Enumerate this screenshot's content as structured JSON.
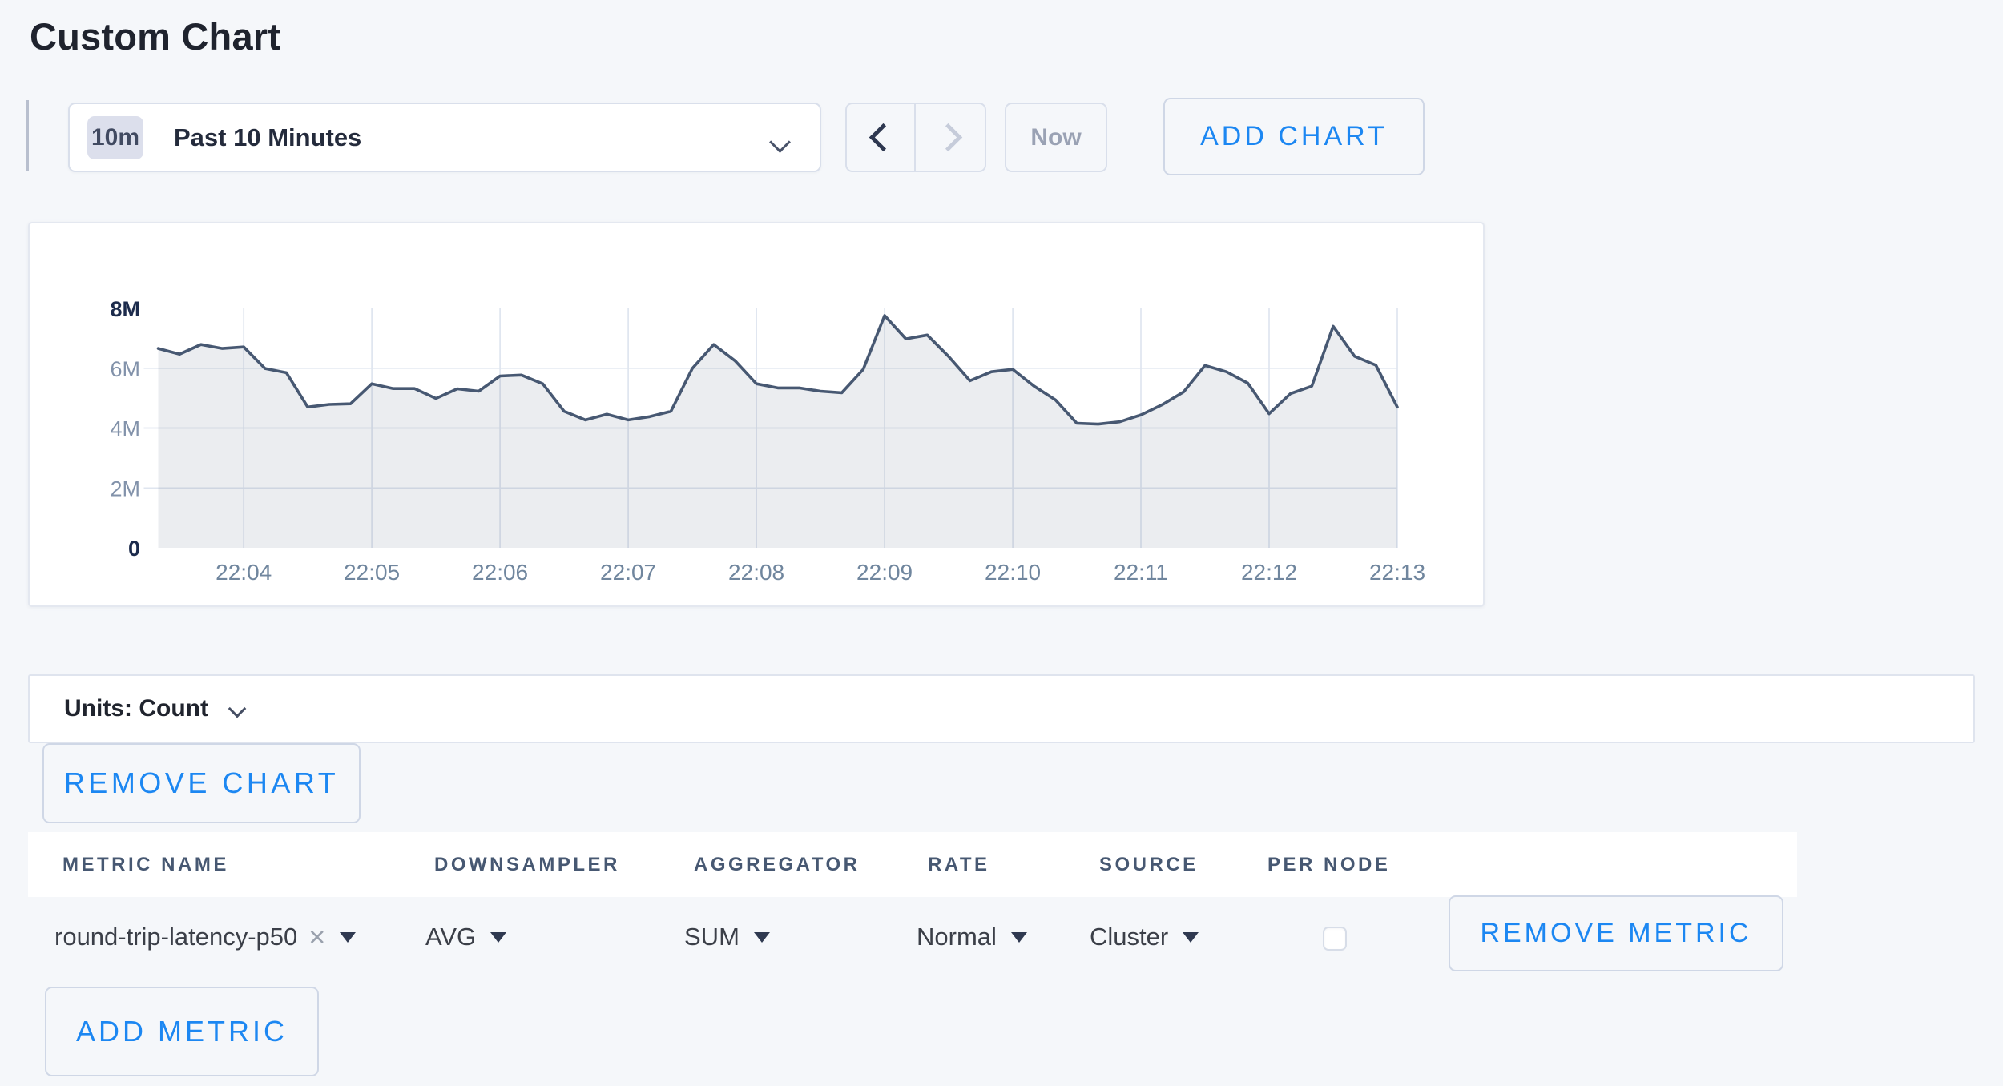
{
  "page": {
    "title": "Custom Chart",
    "background_color": "#f5f7fa",
    "accent_blue": "#1c87f2"
  },
  "toolbar": {
    "time_badge": "10m",
    "time_range_label": "Past 10 Minutes",
    "prev_icon": "chevron-left",
    "next_icon": "chevron-right",
    "now_label": "Now",
    "add_chart_label": "ADD CHART"
  },
  "units_bar": {
    "label": "Units: Count",
    "chevron_icon": "chevron-down"
  },
  "remove_chart_label": "REMOVE CHART",
  "add_metric_label": "ADD METRIC",
  "metrics_table": {
    "headers": [
      "METRIC NAME",
      "DOWNSAMPLER",
      "AGGREGATOR",
      "RATE",
      "SOURCE",
      "PER NODE"
    ],
    "rows": [
      {
        "metric_name": "round-trip-latency-p50",
        "downsampler": "AVG",
        "aggregator": "SUM",
        "rate": "Normal",
        "source": "Cluster",
        "per_node_checked": false,
        "remove_label": "REMOVE METRIC"
      }
    ]
  },
  "chart_data": {
    "type": "area",
    "title": "",
    "legend": false,
    "grid": true,
    "x_tick_labels": [
      "22:04",
      "22:05",
      "22:06",
      "22:07",
      "22:08",
      "22:09",
      "22:10",
      "22:11",
      "22:12",
      "22:13"
    ],
    "x_tick_first_index": 4,
    "x_tick_index_step": 6,
    "y_tick_labels": [
      "0",
      "2M",
      "4M",
      "6M",
      "8M"
    ],
    "y_max_millions": 8,
    "line_color": "#475872",
    "fill_color": "rgba(71,88,114,0.11)",
    "grid_color": "#dfe5ef",
    "axis_label_color_muted": "#8292aa",
    "axis_label_color_strong": "#1c2b4c",
    "x_label_color": "#70869e",
    "series": [
      {
        "name": "round-trip-latency-p50",
        "start_time": "22:03:20",
        "end_time": "22:13:00",
        "interval_seconds": 10,
        "values_millions": [
          6.66,
          6.47,
          6.79,
          6.66,
          6.71,
          5.99,
          5.85,
          4.7,
          4.79,
          4.81,
          5.48,
          5.32,
          5.32,
          4.99,
          5.31,
          5.23,
          5.74,
          5.77,
          5.48,
          4.56,
          4.27,
          4.46,
          4.27,
          4.38,
          4.56,
          5.99,
          6.79,
          6.25,
          5.48,
          5.34,
          5.34,
          5.23,
          5.18,
          5.96,
          7.76,
          6.98,
          7.11,
          6.39,
          5.58,
          5.88,
          5.96,
          5.4,
          4.94,
          4.16,
          4.13,
          4.21,
          4.44,
          4.78,
          5.21,
          6.09,
          5.88,
          5.5,
          4.48,
          5.15,
          5.4,
          7.4,
          6.4,
          6.1,
          4.7
        ]
      }
    ]
  }
}
